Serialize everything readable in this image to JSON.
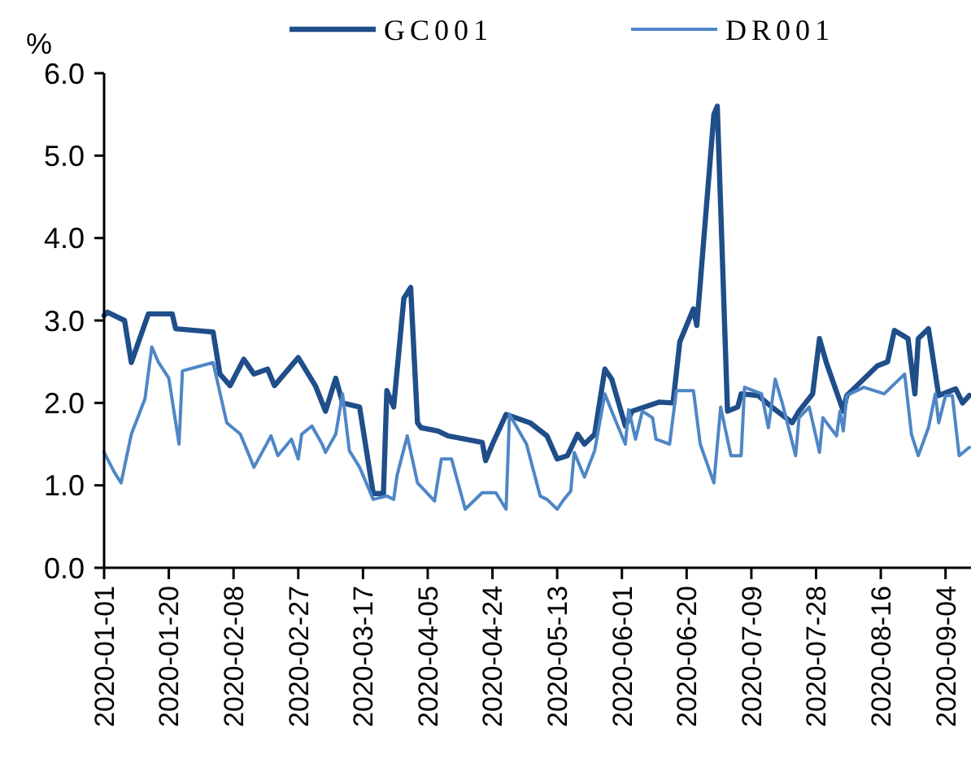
{
  "chart_data": {
    "type": "line",
    "ylabel": "%",
    "legend": "top",
    "grid": false,
    "marker": "none",
    "line_style": "solid",
    "xlim": [
      "2020-01-01",
      "2020-09-11"
    ],
    "xticks": [
      "2020-01-01",
      "2020-01-20",
      "2020-02-08",
      "2020-02-27",
      "2020-03-17",
      "2020-04-05",
      "2020-04-24",
      "2020-05-13",
      "2020-06-01",
      "2020-06-20",
      "2020-07-09",
      "2020-07-28",
      "2020-08-16",
      "2020-09-04"
    ],
    "ylim": [
      0,
      6
    ],
    "yticks": [
      {
        "value": 0,
        "label": "0.0"
      },
      {
        "value": 1,
        "label": "1.0"
      },
      {
        "value": 2,
        "label": "2.0"
      },
      {
        "value": 3,
        "label": "3.0"
      },
      {
        "value": 4,
        "label": "4.0"
      },
      {
        "value": 5,
        "label": "5.0"
      },
      {
        "value": 6,
        "label": "6.0"
      }
    ],
    "series": [
      {
        "name": "GC001",
        "color": "#1f4e89",
        "x": [
          "2020-01-01",
          "2020-01-02",
          "2020-01-07",
          "2020-01-09",
          "2020-01-14",
          "2020-01-21",
          "2020-01-22",
          "2020-02-02",
          "2020-02-04",
          "2020-02-07",
          "2020-02-11",
          "2020-02-14",
          "2020-02-18",
          "2020-02-20",
          "2020-02-27",
          "2020-03-03",
          "2020-03-06",
          "2020-03-09",
          "2020-03-11",
          "2020-03-16",
          "2020-03-20",
          "2020-03-23",
          "2020-03-24",
          "2020-03-26",
          "2020-03-29",
          "2020-03-31",
          "2020-04-02",
          "2020-04-03",
          "2020-04-08",
          "2020-04-11",
          "2020-04-16",
          "2020-04-21",
          "2020-04-22",
          "2020-04-24",
          "2020-04-28",
          "2020-05-05",
          "2020-05-10",
          "2020-05-13",
          "2020-05-16",
          "2020-05-19",
          "2020-05-21",
          "2020-05-24",
          "2020-05-27",
          "2020-05-29",
          "2020-06-02",
          "2020-06-04",
          "2020-06-12",
          "2020-06-16",
          "2020-06-18",
          "2020-06-22",
          "2020-06-23",
          "2020-06-28",
          "2020-06-29",
          "2020-07-02",
          "2020-07-05",
          "2020-07-06",
          "2020-07-11",
          "2020-07-15",
          "2020-07-21",
          "2020-07-23",
          "2020-07-27",
          "2020-07-29",
          "2020-07-31",
          "2020-08-05",
          "2020-08-06",
          "2020-08-11",
          "2020-08-15",
          "2020-08-18",
          "2020-08-20",
          "2020-08-24",
          "2020-08-26",
          "2020-08-27",
          "2020-08-30",
          "2020-09-02",
          "2020-09-07",
          "2020-09-09",
          "2020-09-11"
        ],
        "values": [
          3.06,
          3.1,
          3.0,
          2.49,
          3.08,
          3.08,
          2.9,
          2.86,
          2.35,
          2.21,
          2.53,
          2.35,
          2.41,
          2.21,
          2.55,
          2.21,
          1.9,
          2.3,
          2.0,
          1.95,
          0.9,
          0.9,
          2.15,
          1.95,
          3.27,
          3.4,
          1.76,
          1.7,
          1.66,
          1.6,
          1.56,
          1.52,
          1.3,
          1.5,
          1.86,
          1.76,
          1.6,
          1.32,
          1.36,
          1.62,
          1.5,
          1.62,
          2.41,
          2.29,
          1.72,
          1.9,
          2.01,
          2.0,
          2.74,
          3.14,
          2.94,
          5.5,
          5.6,
          1.9,
          1.95,
          2.11,
          2.09,
          1.95,
          1.76,
          1.9,
          2.11,
          2.78,
          2.49,
          1.9,
          2.09,
          2.29,
          2.45,
          2.5,
          2.88,
          2.78,
          2.11,
          2.78,
          2.9,
          2.09,
          2.17,
          2.0,
          2.09
        ]
      },
      {
        "name": "DR001",
        "color": "#4f86c6",
        "x": [
          "2020-01-01",
          "2020-01-04",
          "2020-01-06",
          "2020-01-09",
          "2020-01-13",
          "2020-01-15",
          "2020-01-17",
          "2020-01-20",
          "2020-01-23",
          "2020-01-24",
          "2020-02-02",
          "2020-02-06",
          "2020-02-10",
          "2020-02-14",
          "2020-02-19",
          "2020-02-21",
          "2020-02-25",
          "2020-02-27",
          "2020-02-28",
          "2020-03-02",
          "2020-03-05",
          "2020-03-06",
          "2020-03-09",
          "2020-03-11",
          "2020-03-13",
          "2020-03-16",
          "2020-03-20",
          "2020-03-24",
          "2020-03-26",
          "2020-03-27",
          "2020-03-30",
          "2020-04-02",
          "2020-04-07",
          "2020-04-09",
          "2020-04-12",
          "2020-04-16",
          "2020-04-21",
          "2020-04-25",
          "2020-04-28",
          "2020-04-29",
          "2020-05-04",
          "2020-05-08",
          "2020-05-10",
          "2020-05-13",
          "2020-05-15",
          "2020-05-17",
          "2020-05-18",
          "2020-05-21",
          "2020-05-24",
          "2020-05-27",
          "2020-05-29",
          "2020-06-02",
          "2020-06-03",
          "2020-06-05",
          "2020-06-07",
          "2020-06-10",
          "2020-06-11",
          "2020-06-15",
          "2020-06-17",
          "2020-06-22",
          "2020-06-24",
          "2020-06-28",
          "2020-06-30",
          "2020-07-03",
          "2020-07-06",
          "2020-07-07",
          "2020-07-12",
          "2020-07-14",
          "2020-07-16",
          "2020-07-18",
          "2020-07-22",
          "2020-07-23",
          "2020-07-26",
          "2020-07-29",
          "2020-07-30",
          "2020-08-03",
          "2020-08-04",
          "2020-08-05",
          "2020-08-06",
          "2020-08-11",
          "2020-08-17",
          "2020-08-23",
          "2020-08-25",
          "2020-08-27",
          "2020-08-30",
          "2020-09-01",
          "2020-09-02",
          "2020-09-04",
          "2020-09-06",
          "2020-09-08",
          "2020-09-11"
        ],
        "values": [
          1.4,
          1.16,
          1.03,
          1.62,
          2.05,
          2.68,
          2.49,
          2.3,
          1.5,
          2.39,
          2.49,
          1.76,
          1.62,
          1.22,
          1.6,
          1.36,
          1.56,
          1.32,
          1.62,
          1.72,
          1.5,
          1.4,
          1.62,
          2.11,
          1.42,
          1.22,
          0.83,
          0.87,
          0.83,
          1.12,
          1.6,
          1.03,
          0.81,
          1.32,
          1.32,
          0.71,
          0.91,
          0.91,
          0.71,
          1.86,
          1.5,
          0.87,
          0.83,
          0.71,
          0.83,
          0.93,
          1.4,
          1.1,
          1.42,
          2.11,
          1.9,
          1.5,
          1.92,
          1.56,
          1.9,
          1.82,
          1.56,
          1.5,
          2.15,
          2.15,
          1.5,
          1.03,
          1.95,
          1.36,
          1.36,
          2.19,
          2.11,
          1.7,
          2.29,
          2.01,
          1.36,
          1.82,
          1.95,
          1.4,
          1.82,
          1.6,
          1.9,
          1.66,
          2.09,
          2.19,
          2.11,
          2.35,
          1.62,
          1.36,
          1.7,
          2.11,
          1.76,
          2.09,
          2.09,
          1.36,
          1.46
        ]
      }
    ]
  }
}
